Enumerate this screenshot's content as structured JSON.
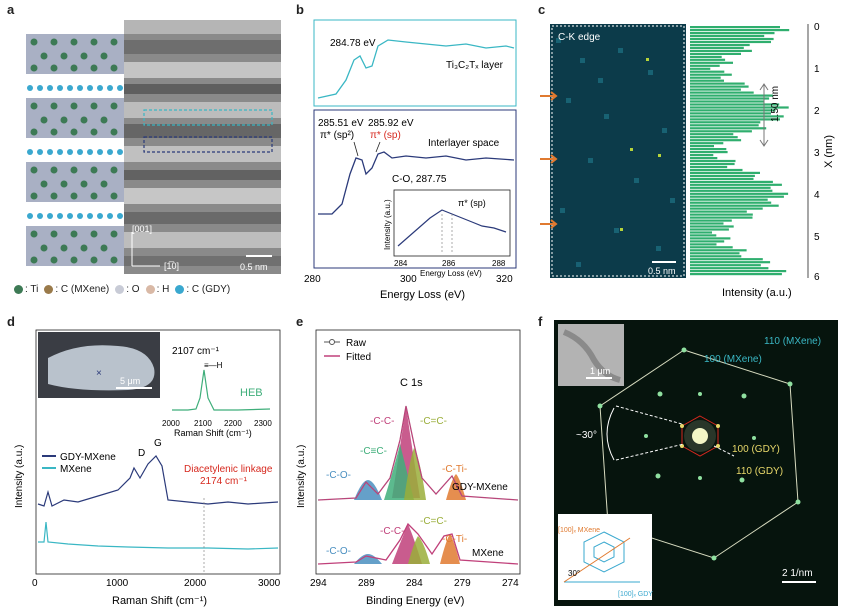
{
  "panels": {
    "a": {
      "label": "a",
      "legend": [
        {
          "name": ": Ti",
          "color": "#3d7a55"
        },
        {
          "name": ": C (MXene)",
          "color": "#9a7a4a"
        },
        {
          "name": ": O",
          "color": "#c8cbd6"
        },
        {
          "name": ": H",
          "color": "#d9b9a6"
        },
        {
          "name": ": C (GDY)",
          "color": "#3aa8cf"
        }
      ],
      "axis_up": "[001]",
      "axis_right": "[1̅0]",
      "scale": "0.5 nm"
    },
    "b": {
      "label": "b",
      "top_peak": "284.78 eV",
      "top_label": "Ti₃C₂Tₓ layer",
      "peak1": "285.51 eV",
      "peak1_sub": "π* (sp²)",
      "peak2": "285.92 eV",
      "peak2_sub": "π* (sp)",
      "co_label": "C-O, 287.75",
      "region_label": "Interlayer space",
      "inset_ylabel": "Intensity (a.u.)",
      "inset_xlabel": "Energy Loss (eV)",
      "inset_ticks": [
        "284",
        "286",
        "288"
      ],
      "inset_peak": "π* (sp)",
      "xlabel": "Energy Loss (eV)",
      "xticks": [
        "280",
        "300",
        "320"
      ]
    },
    "c": {
      "label": "c",
      "map_label": "C-K edge",
      "scale": "0.5 nm",
      "xlabel": "Intensity (a.u.)",
      "ylabel": "X (nm)",
      "yticks": [
        "0",
        "1",
        "2",
        "3",
        "4",
        "5",
        "6"
      ],
      "spacing": "1.50 nm"
    },
    "d": {
      "label": "d",
      "image_scale": "5 μm",
      "inset_peak": "2107 cm⁻¹",
      "inset_name": "HEB",
      "inset_ticks": [
        "2000",
        "2100",
        "2200",
        "2300"
      ],
      "inset_xlabel": "Raman Shift (cm⁻¹)",
      "ylabel": "Intensity (a.u.)",
      "legend": [
        "GDY-MXene",
        "MXene"
      ],
      "peak_d": "D",
      "peak_g": "G",
      "linkage": "Diacetylenic linkage",
      "linkage_value": "2174 cm⁻¹",
      "xlabel": "Raman Shift (cm⁻¹)",
      "xticks": [
        "0",
        "1000",
        "2000",
        "3000"
      ]
    },
    "e": {
      "label": "e",
      "legend": [
        "Raw",
        "Fitted"
      ],
      "title": "C 1s",
      "peaks_top": [
        "-C-C-",
        "-C≡C-",
        "-C=C-",
        "-C-O-",
        "-C-Ti-"
      ],
      "peaks_bottom": [
        "-C-C-",
        "-C=C-",
        "-C-Ti-",
        "-C-O-"
      ],
      "trace_top": "GDY-MXene",
      "trace_bottom": "MXene",
      "ylabel": "Intensity (a.u.)",
      "xlabel": "Binding Energy (eV)",
      "xticks": [
        "294",
        "289",
        "284",
        "279",
        "274"
      ]
    },
    "f": {
      "label": "f",
      "inset_scale": "1 μm",
      "spots": [
        "110 (MXene)",
        "100 (MXene)",
        "100 (GDY)",
        "110 (GDY)"
      ],
      "angle": "~30°",
      "scale": "2 1/nm",
      "model_labels": [
        "[100]ₓ GDY",
        "[100]ₓ MXene",
        "30°"
      ]
    }
  },
  "colors": {
    "navy": "#2b3a7a",
    "cyan": "#3ab7c4",
    "green": "#3fae7a",
    "magenta": "#c0407a",
    "red": "#d6281e",
    "orange": "#e07a30"
  }
}
